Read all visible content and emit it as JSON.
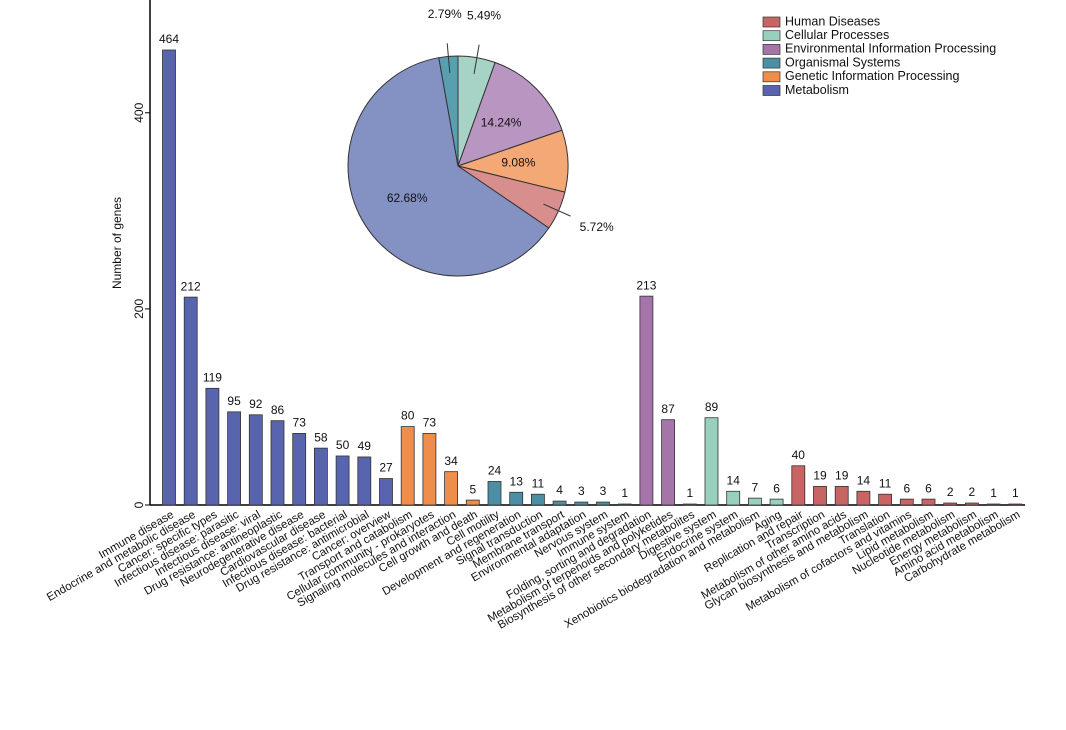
{
  "chart_data": [
    {
      "type": "bar",
      "y_label": "Number of genes",
      "ylim": [
        0,
        515
      ],
      "yticks": [
        0,
        200,
        400
      ],
      "categories": [
        "Immune disease",
        "Endocrine and metabolic disease",
        "Cancer: specific types",
        "Infectious disease: parasitic",
        "Infectious disease: viral",
        "Drug resistance: antineoplastic",
        "Neurodegenerative disease",
        "Cardiovascular disease",
        "Infectious disease: bacterial",
        "Drug resistance: antimicrobial",
        "Cancer: overview",
        "Transport and catabolism",
        "Cellular community - prokaryotes",
        "Signaling molecules and interaction",
        "Cell growth and death",
        "Cell motility",
        "Development and regeneration",
        "Signal transduction",
        "Membrane transport",
        "Environmental adaptation",
        "Nervous system",
        "Immune system",
        "Folding, sorting and degradation",
        "Metabolism of terpenoids and polyketides",
        "Biosynthesis of other secondary metabolites",
        "Digestive system",
        "Endocrine system",
        "Xenobiotics biodegradation and metabolism",
        "Aging",
        "Replication and repair",
        "Transcription",
        "Metabolism of other amino acids",
        "Glycan biosynthesis and metabolism",
        "Translation",
        "Metabolism of cofactors and vitamins",
        "Lipid metabolism",
        "Nucleotide metabolism",
        "Energy metabolism",
        "Amino acid metabolism",
        "Carbohydrate metabolism"
      ],
      "series": [
        {
          "name": "Human Diseases",
          "color": "#c96464",
          "values": [
            null,
            null,
            null,
            null,
            null,
            null,
            null,
            null,
            null,
            null,
            null,
            null,
            null,
            null,
            null,
            null,
            null,
            null,
            null,
            null,
            null,
            null,
            null,
            null,
            null,
            null,
            null,
            null,
            null,
            40,
            19,
            19,
            14,
            11,
            6,
            6,
            2,
            2,
            1,
            1
          ]
        },
        {
          "name": "Cellular Processes",
          "color": "#98cfbd",
          "values": [
            null,
            null,
            null,
            null,
            null,
            null,
            null,
            null,
            null,
            null,
            null,
            null,
            null,
            null,
            null,
            null,
            null,
            null,
            null,
            null,
            null,
            null,
            null,
            null,
            null,
            89,
            14,
            7,
            6,
            null,
            null,
            null,
            null,
            null,
            null,
            null,
            null,
            null,
            null,
            null
          ]
        },
        {
          "name": "Environmental Information Processing",
          "color": "#a575a9",
          "values": [
            null,
            null,
            null,
            null,
            null,
            null,
            null,
            null,
            null,
            null,
            null,
            null,
            null,
            null,
            null,
            null,
            null,
            null,
            null,
            null,
            null,
            null,
            213,
            87,
            1,
            null,
            null,
            null,
            null,
            null,
            null,
            null,
            null,
            null,
            null,
            null,
            null,
            null,
            null,
            null
          ]
        },
        {
          "name": "Organismal Systems",
          "color": "#4c8fa5",
          "values": [
            null,
            null,
            null,
            null,
            null,
            null,
            null,
            null,
            null,
            null,
            null,
            null,
            null,
            null,
            null,
            24,
            13,
            11,
            4,
            3,
            3,
            1,
            null,
            null,
            null,
            null,
            null,
            null,
            null,
            null,
            null,
            null,
            null,
            null,
            null,
            null,
            null,
            null,
            null,
            null
          ]
        },
        {
          "name": "Genetic Information Processing",
          "color": "#ef8d4a",
          "values": [
            null,
            null,
            null,
            null,
            null,
            null,
            null,
            null,
            null,
            null,
            null,
            80,
            73,
            34,
            5,
            null,
            null,
            null,
            null,
            null,
            null,
            null,
            null,
            null,
            null,
            null,
            null,
            null,
            null,
            null,
            null,
            null,
            null,
            null,
            null,
            null,
            null,
            null,
            null,
            null
          ]
        },
        {
          "name": "Metabolism",
          "color": "#5864ad",
          "values": [
            464,
            212,
            119,
            95,
            92,
            86,
            73,
            58,
            50,
            49,
            27,
            null,
            null,
            null,
            null,
            null,
            null,
            null,
            null,
            null,
            null,
            null,
            null,
            null,
            null,
            null,
            null,
            null,
            null,
            null,
            null,
            null,
            null,
            null,
            null,
            null,
            null,
            null,
            null,
            null
          ]
        }
      ]
    },
    {
      "type": "pie",
      "values": [
        5.49,
        14.24,
        9.08,
        5.72,
        62.68,
        2.79
      ],
      "value_labels": [
        "5.49%",
        "14.24%",
        "9.08%",
        "5.72%",
        "62.68%",
        "2.79%"
      ],
      "colors": [
        "#a6d3c6",
        "#b995c1",
        "#f3a876",
        "#d98e8e",
        "#8491c3",
        "#5a9fb0"
      ]
    }
  ]
}
